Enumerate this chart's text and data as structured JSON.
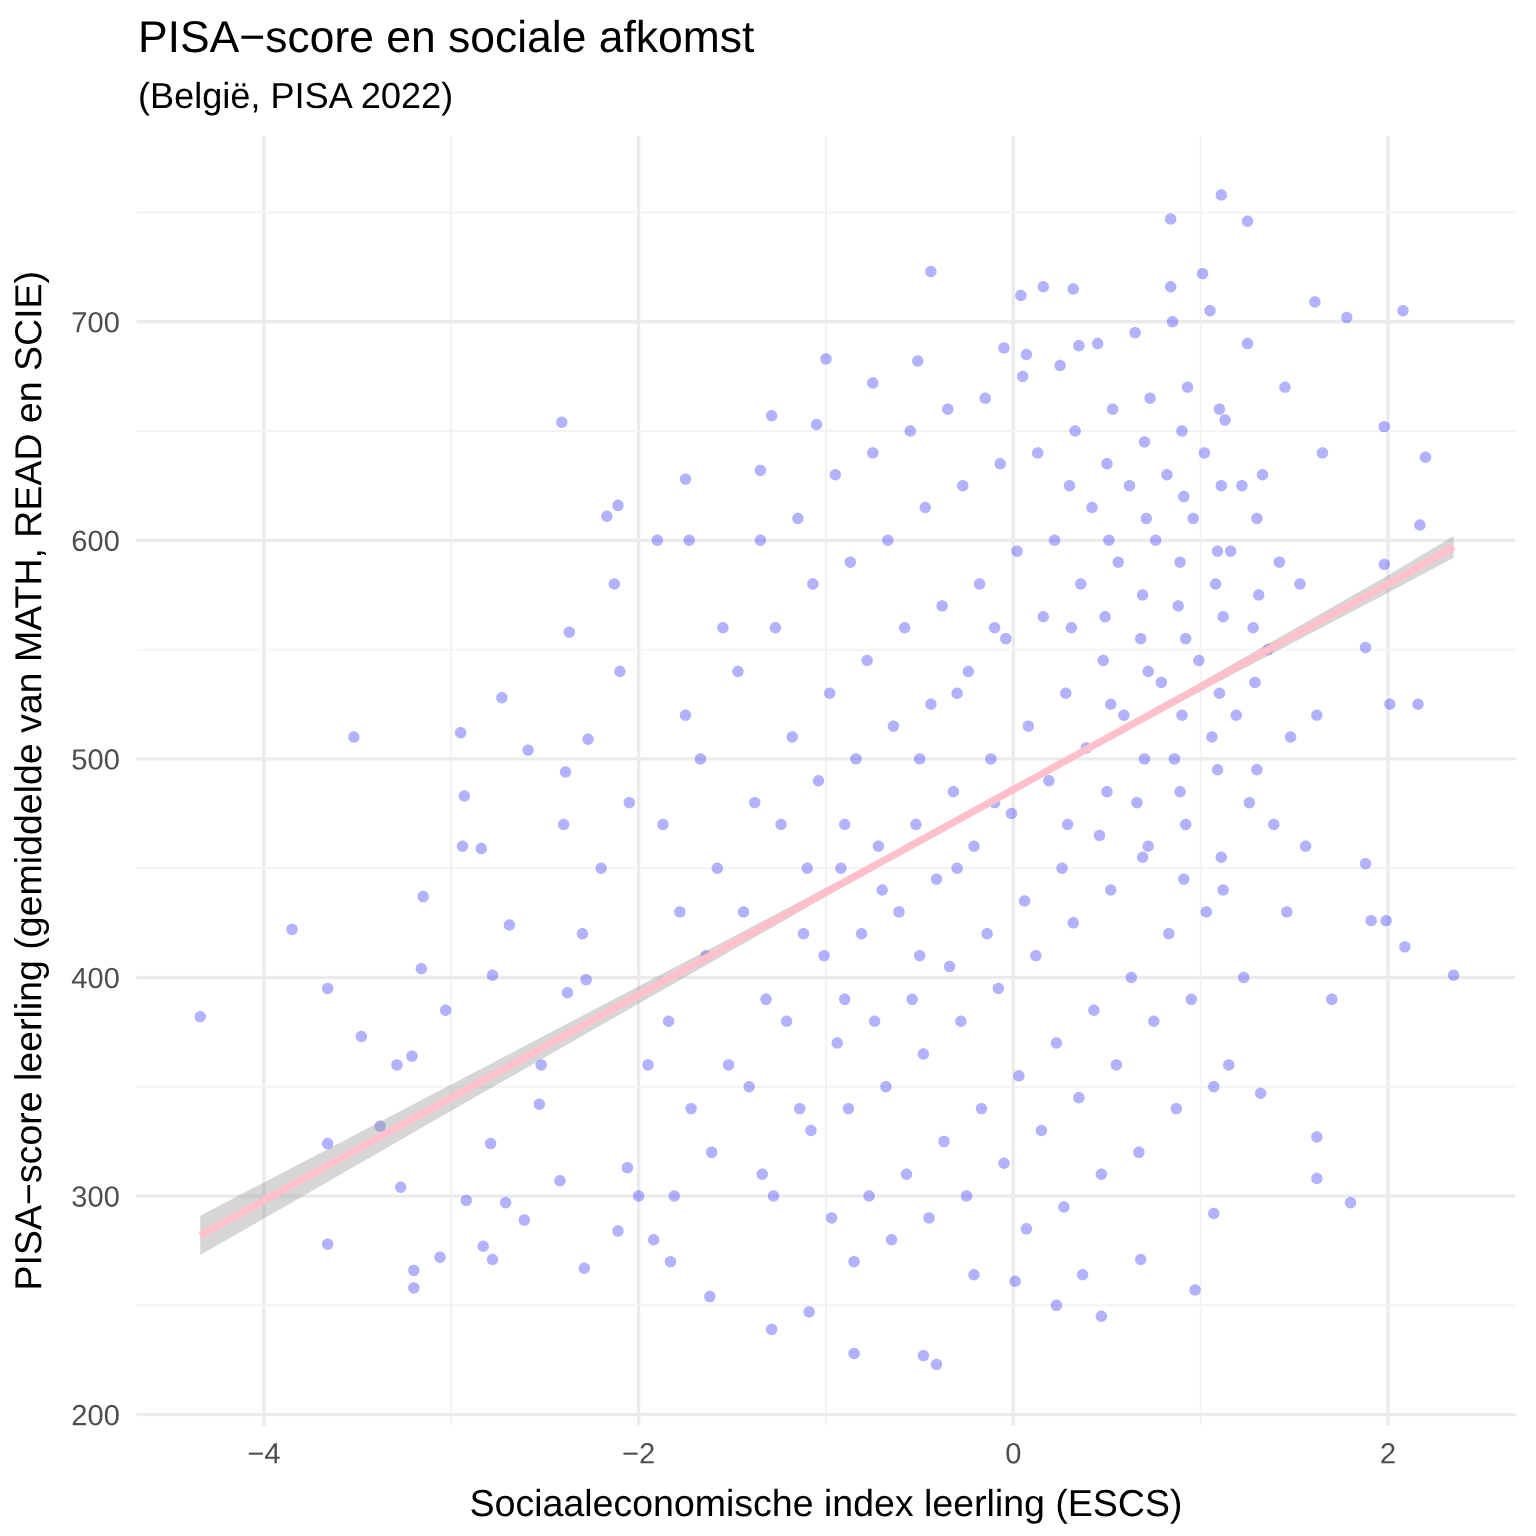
{
  "chart_data": {
    "type": "scatter",
    "title": "PISA−score en sociale afkomst",
    "subtitle": "(België, PISA 2022)",
    "xlabel": "Sociaaleconomische index leerling (ESCS)",
    "ylabel": "PISA−score leerling (gemiddelde van MATH, READ en SCIE)",
    "xlim": [
      -4.68,
      2.68
    ],
    "ylim": [
      195,
      785
    ],
    "xticks": [
      {
        "value": -4,
        "label": "−4"
      },
      {
        "value": -2,
        "label": "−2"
      },
      0,
      2
    ],
    "yticks": [
      200,
      300,
      400,
      500,
      600,
      700
    ],
    "grid": true,
    "series": [
      {
        "color": "#0000ff",
        "x": [
          -3.52,
          -2.41,
          -1.29,
          -2.95,
          -2.73,
          -2.37,
          -2.17,
          -2.11,
          -1.75,
          -2.13,
          -1.35,
          -1.73,
          -2.59,
          -2.93,
          -2.27,
          -2.39,
          -4.34,
          -3.85,
          -3.66,
          -3.48,
          -3.66,
          -3.66,
          -3.38,
          -3.15,
          -3.16,
          -3.29,
          -3.21,
          -3.27,
          -3.2,
          -3.2,
          -3.03,
          -3.06,
          -2.94,
          -2.84,
          -2.78,
          -2.69,
          -2.79,
          -2.83,
          -2.78,
          -2.61,
          -2.71,
          -2.92,
          -2.29,
          -2.42,
          -2.11,
          -2.06,
          -2.52,
          -2.53,
          -2.38,
          -2.28,
          -1.62,
          -1.29,
          -1.92,
          -1.83,
          2.35,
          2.09,
          1.99,
          1.91,
          1.8,
          1.62,
          1.62,
          1.7,
          1.88,
          1.07,
          0.97,
          1.32,
          0.47,
          0.23,
          -0.41,
          -0.48,
          -0.85,
          -1.09,
          -0.21,
          0.01,
          0.37,
          0.68,
          1.11,
          0.84,
          1.25,
          -0.44,
          0.04,
          0.16,
          0.32,
          1.01,
          0.84,
          2.08,
          1.61,
          1.78,
          2.2,
          2.17,
          1.98,
          1.88,
          2.16,
          2.01,
          1.98,
          -1.0,
          -0.51,
          -0.75,
          -0.05,
          0.07,
          0.35,
          -1.05,
          -2.2,
          -2.05,
          -2.3,
          -1.95,
          -2.1,
          -2.4,
          -2.0,
          -1.9,
          -1.75,
          -1.87,
          -1.78,
          -1.84,
          -1.72,
          -1.81,
          -1.55,
          -1.67,
          -1.58,
          -1.64,
          -1.52,
          -1.61,
          -1.35,
          -1.47,
          -1.38,
          -1.44,
          -1.32,
          -1.41,
          -1.34,
          -1.15,
          -1.27,
          -1.18,
          -1.24,
          -1.12,
          -1.21,
          -1.14,
          -1.28,
          -0.95,
          -1.07,
          -0.98,
          -1.04,
          -0.92,
          -1.01,
          -0.94,
          -1.08,
          -0.97,
          -0.75,
          -0.87,
          -0.78,
          -0.84,
          -0.72,
          -0.81,
          -0.74,
          -0.88,
          -0.77,
          -0.85,
          -0.55,
          -0.67,
          -0.58,
          -0.64,
          -0.52,
          -0.61,
          -0.54,
          -0.68,
          -0.57,
          -0.65,
          -0.35,
          -0.47,
          -0.38,
          -0.44,
          -0.32,
          -0.41,
          -0.34,
          -0.48,
          -0.37,
          -0.45,
          -0.15,
          -0.27,
          -0.18,
          -0.24,
          -0.12,
          -0.21,
          -0.14,
          -0.28,
          -0.17,
          -0.25,
          0.05,
          -0.07,
          0.02,
          -0.04,
          0.08,
          -0.01,
          0.06,
          -0.08,
          0.03,
          -0.05,
          0.07,
          0.25,
          0.13,
          0.22,
          0.16,
          0.28,
          0.19,
          0.26,
          0.12,
          0.23,
          0.15,
          0.27,
          0.45,
          0.33,
          0.42,
          0.36,
          0.48,
          0.39,
          0.46,
          0.32,
          0.43,
          0.35,
          0.47,
          0.65,
          0.53,
          0.62,
          0.56,
          0.68,
          0.59,
          0.66,
          0.52,
          0.63,
          0.55,
          0.67,
          0.85,
          0.73,
          0.82,
          0.76,
          0.88,
          0.79,
          0.86,
          0.72,
          0.83,
          0.75,
          0.87,
          1.05,
          0.93,
          1.02,
          0.96,
          1.08,
          0.99,
          1.06,
          0.92,
          1.03,
          0.95,
          1.07,
          1.25,
          1.13,
          1.22,
          1.16,
          1.28,
          1.19,
          1.26,
          1.12,
          1.23,
          1.15,
          1.45,
          1.33,
          1.42,
          1.36,
          1.48,
          1.39,
          1.46,
          1.65,
          1.53,
          1.62,
          1.56,
          0.3,
          0.31,
          0.29,
          0.5,
          0.51,
          0.49,
          0.52,
          0.5,
          0.7,
          0.71,
          0.69,
          0.72,
          0.7,
          0.69,
          0.9,
          0.91,
          0.89,
          0.92,
          0.9,
          0.89,
          0.91,
          1.1,
          1.11,
          1.09,
          1.12,
          1.1,
          1.09,
          1.11,
          1.3,
          1.31,
          1.29,
          1.3,
          -1.1,
          -0.9,
          -0.7,
          -0.5,
          -0.3,
          -0.1,
          -0.9,
          -0.5,
          -0.3,
          -0.1
        ],
        "values": [
          510,
          654,
          657,
          512,
          528,
          558,
          611,
          616,
          628,
          580,
          632,
          600,
          504,
          483,
          509,
          494,
          382,
          422,
          395,
          373,
          324,
          278,
          332,
          437,
          404,
          360,
          364,
          304,
          266,
          258,
          385,
          272,
          460,
          459,
          401,
          424,
          324,
          277,
          271,
          289,
          297,
          298,
          267,
          307,
          284,
          313,
          360,
          342,
          393,
          399,
          254,
          239,
          280,
          270,
          401,
          414,
          426,
          426,
          297,
          308,
          327,
          390,
          452,
          292,
          257,
          347,
          245,
          250,
          223,
          227,
          228,
          247,
          264,
          261,
          264,
          271,
          758,
          747,
          746,
          723,
          712,
          716,
          715,
          722,
          716,
          705,
          709,
          702,
          638,
          607,
          652,
          551,
          525,
          525,
          589,
          683,
          682,
          672,
          688,
          685,
          689,
          653,
          450,
          480,
          420,
          360,
          540,
          470,
          300,
          600,
          520,
          470,
          430,
          380,
          340,
          300,
          560,
          500,
          450,
          410,
          360,
          320,
          600,
          540,
          480,
          430,
          390,
          350,
          310,
          610,
          560,
          510,
          470,
          420,
          380,
          340,
          300,
          630,
          580,
          530,
          490,
          450,
          410,
          370,
          330,
          290,
          640,
          590,
          545,
          500,
          460,
          420,
          380,
          340,
          300,
          270,
          650,
          600,
          560,
          515,
          470,
          430,
          390,
          350,
          310,
          280,
          660,
          615,
          570,
          525,
          485,
          445,
          405,
          365,
          325,
          290,
          665,
          625,
          580,
          540,
          500,
          460,
          420,
          380,
          340,
          300,
          675,
          635,
          595,
          555,
          515,
          475,
          435,
          395,
          355,
          315,
          285,
          680,
          640,
          600,
          565,
          530,
          490,
          450,
          410,
          370,
          330,
          295,
          690,
          650,
          615,
          580,
          545,
          505,
          465,
          425,
          385,
          345,
          310,
          695,
          660,
          625,
          590,
          555,
          520,
          480,
          440,
          400,
          360,
          320,
          700,
          665,
          630,
          600,
          570,
          535,
          500,
          460,
          420,
          380,
          340,
          705,
          670,
          640,
          610,
          580,
          545,
          510,
          470,
          430,
          390,
          350,
          690,
          655,
          625,
          595,
          560,
          520,
          480,
          440,
          400,
          360,
          670,
          630,
          590,
          550,
          510,
          470,
          430,
          640,
          580,
          520,
          460,
          625,
          560,
          470,
          635,
          600,
          565,
          525,
          485,
          645,
          610,
          575,
          540,
          500,
          455,
          650,
          620,
          590,
          555,
          520,
          485,
          445,
          660,
          625,
          595,
          565,
          530,
          495,
          455,
          610,
          575,
          535,
          495,
          450,
          470,
          440,
          500,
          450,
          480,
          390,
          410,
          530,
          560
        ]
      },
      {
        "type": "line",
        "color": "#ffc0cb",
        "x": [
          -4.34,
          -3,
          -2,
          -1,
          0,
          1,
          2,
          2.35
        ],
        "values": [
          282,
          345,
          392,
          439,
          486,
          533,
          580,
          597
        ],
        "lower": [
          273,
          339,
          388,
          437,
          485,
          531,
          576,
          592
        ],
        "upper": [
          291,
          351,
          396,
          441,
          487,
          535,
          584,
          602
        ]
      }
    ]
  }
}
